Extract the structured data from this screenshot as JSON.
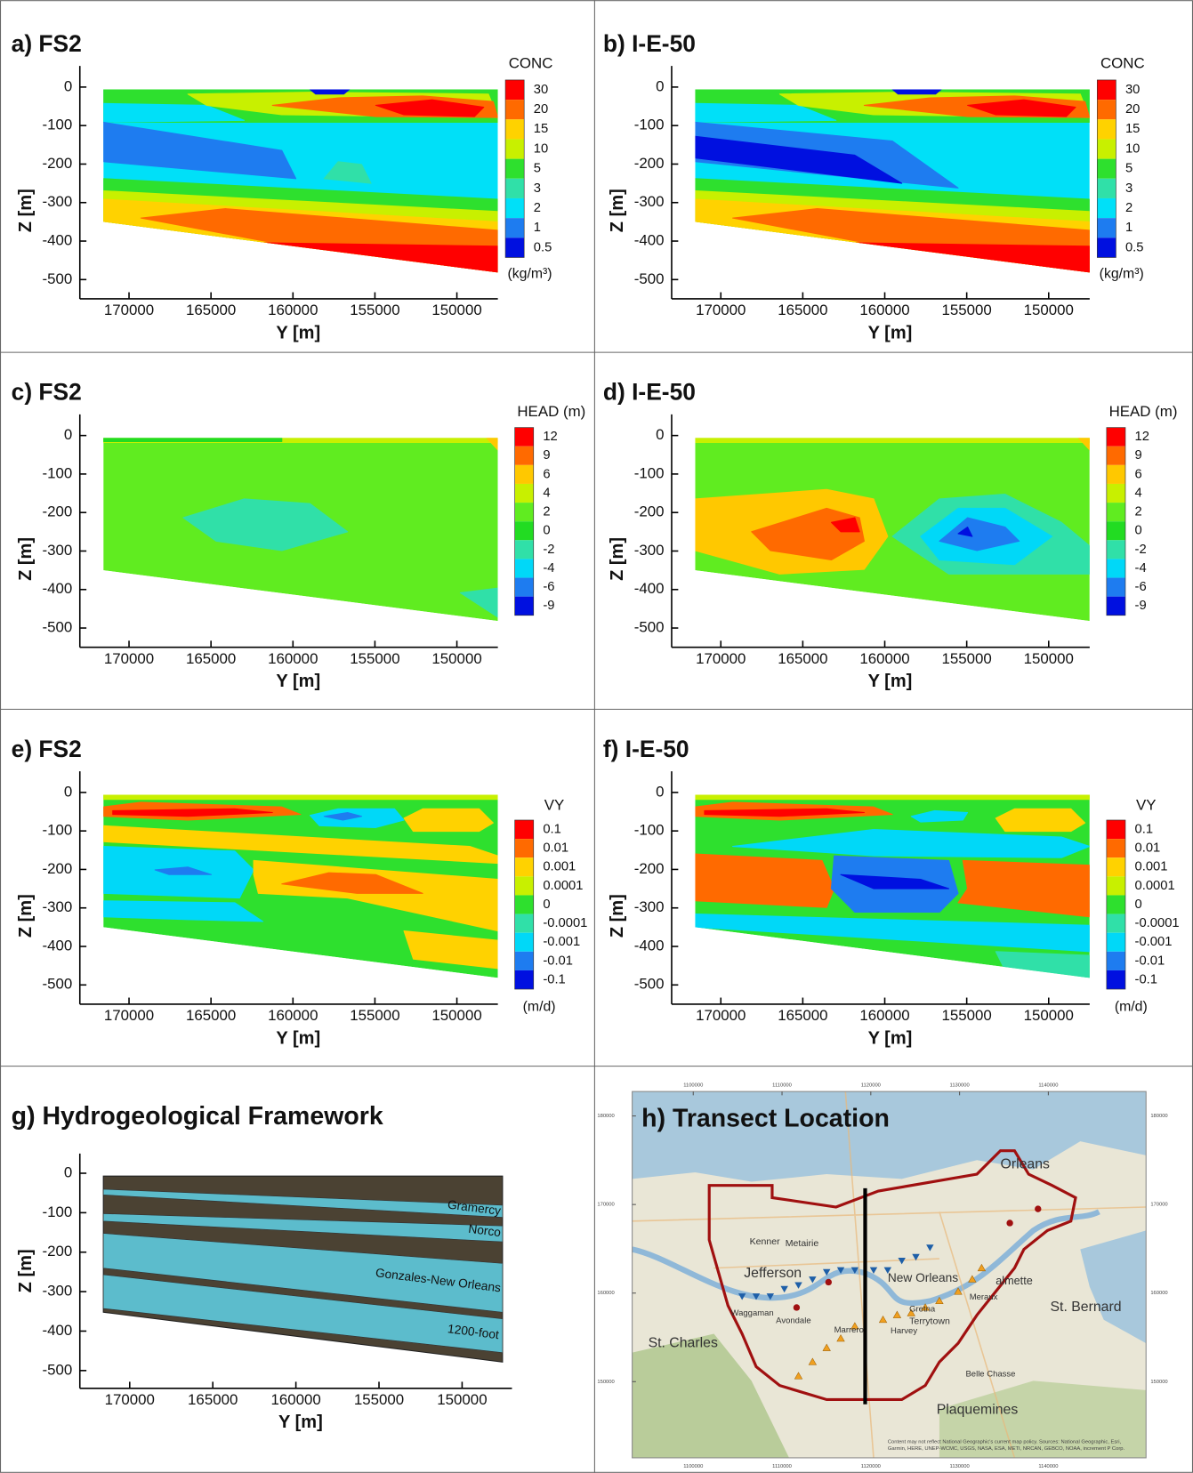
{
  "chart_data": [
    {
      "type": "contour",
      "title": "a) FS2",
      "xlabel": "Y [m]",
      "ylabel": "Z [m]",
      "xlim": [
        173000,
        147500
      ],
      "xticks": [
        170000,
        165000,
        160000,
        155000,
        150000
      ],
      "ylim": [
        -550,
        55
      ],
      "yticks": [
        0,
        -100,
        -200,
        -300,
        -400,
        -500
      ],
      "colorbar": {
        "title": "CONC",
        "levels": [
          30,
          20,
          15,
          10,
          5,
          3,
          2,
          1,
          0.5
        ],
        "unit": "(kg/m³)",
        "colors": [
          "#ff0000",
          "#ff6a00",
          "#ffd200",
          "#c8f000",
          "#2ee02e",
          "#30e0a8",
          "#00e0f8",
          "#1e7cf0",
          "#0010e0"
        ]
      }
    },
    {
      "type": "contour",
      "title": "b) I-E-50",
      "xlabel": "Y [m]",
      "ylabel": "Z [m]",
      "xlim": [
        173000,
        147500
      ],
      "xticks": [
        170000,
        165000,
        160000,
        155000,
        150000
      ],
      "ylim": [
        -550,
        55
      ],
      "yticks": [
        0,
        -100,
        -200,
        -300,
        -400,
        -500
      ],
      "colorbar": {
        "title": "CONC",
        "levels": [
          30,
          20,
          15,
          10,
          5,
          3,
          2,
          1,
          0.5
        ],
        "unit": "(kg/m³)",
        "colors": [
          "#ff0000",
          "#ff6a00",
          "#ffd200",
          "#c8f000",
          "#2ee02e",
          "#30e0a8",
          "#00e0f8",
          "#1e7cf0",
          "#0010e0"
        ]
      }
    },
    {
      "type": "contour",
      "title": "c) FS2",
      "xlabel": "Y [m]",
      "ylabel": "Z [m]",
      "xlim": [
        173000,
        147500
      ],
      "xticks": [
        170000,
        165000,
        160000,
        155000,
        150000
      ],
      "ylim": [
        -550,
        55
      ],
      "yticks": [
        0,
        -100,
        -200,
        -300,
        -400,
        -500
      ],
      "colorbar": {
        "title": "HEAD (m)",
        "levels": [
          12,
          9,
          6,
          4,
          2,
          0,
          -2,
          -4,
          -6,
          -9
        ],
        "colors": [
          "#ff0000",
          "#ff6a00",
          "#ffc800",
          "#c8f000",
          "#60ec20",
          "#22dc22",
          "#30e0a8",
          "#00d8f8",
          "#1e7cf0",
          "#0010e0"
        ]
      }
    },
    {
      "type": "contour",
      "title": "d) I-E-50",
      "xlabel": "Y [m]",
      "ylabel": "Z [m]",
      "xlim": [
        173000,
        147500
      ],
      "xticks": [
        170000,
        165000,
        160000,
        155000,
        150000
      ],
      "ylim": [
        -550,
        55
      ],
      "yticks": [
        0,
        -100,
        -200,
        -300,
        -400,
        -500
      ],
      "colorbar": {
        "title": "HEAD (m)",
        "levels": [
          12,
          9,
          6,
          4,
          2,
          0,
          -2,
          -4,
          -6,
          -9
        ],
        "colors": [
          "#ff0000",
          "#ff6a00",
          "#ffc800",
          "#c8f000",
          "#60ec20",
          "#22dc22",
          "#30e0a8",
          "#00d8f8",
          "#1e7cf0",
          "#0010e0"
        ]
      }
    },
    {
      "type": "contour",
      "title": "e) FS2",
      "xlabel": "Y [m]",
      "ylabel": "Z [m]",
      "xlim": [
        173000,
        147500
      ],
      "xticks": [
        170000,
        165000,
        160000,
        155000,
        150000
      ],
      "ylim": [
        -550,
        55
      ],
      "yticks": [
        0,
        -100,
        -200,
        -300,
        -400,
        -500
      ],
      "colorbar": {
        "title": "VY",
        "levels": [
          0.1,
          0.01,
          0.001,
          0.0001,
          0,
          -0.0001,
          -0.001,
          -0.01,
          -0.1
        ],
        "unit": "(m/d)",
        "colors": [
          "#ff0000",
          "#ff6a00",
          "#ffd200",
          "#c8f000",
          "#2ee02e",
          "#30e0a8",
          "#00d8f8",
          "#1e7cf0",
          "#0010e0"
        ]
      }
    },
    {
      "type": "contour",
      "title": "f) I-E-50",
      "xlabel": "Y [m]",
      "ylabel": "Z [m]",
      "xlim": [
        173000,
        147500
      ],
      "xticks": [
        170000,
        165000,
        160000,
        155000,
        150000
      ],
      "ylim": [
        -550,
        55
      ],
      "yticks": [
        0,
        -100,
        -200,
        -300,
        -400,
        -500
      ],
      "colorbar": {
        "title": "VY",
        "levels": [
          0.1,
          0.01,
          0.001,
          0.0001,
          0,
          -0.0001,
          -0.001,
          -0.01,
          -0.1
        ],
        "unit": "(m/d)",
        "colors": [
          "#ff0000",
          "#ff6a00",
          "#ffd200",
          "#c8f000",
          "#2ee02e",
          "#30e0a8",
          "#00d8f8",
          "#1e7cf0",
          "#0010e0"
        ]
      }
    },
    {
      "type": "layers",
      "title": "g) Hydrogeological Framework",
      "xlabel": "Y [m]",
      "ylabel": "Z [m]",
      "xlim": [
        173000,
        147000
      ],
      "xticks": [
        170000,
        165000,
        160000,
        155000,
        150000
      ],
      "ylim": [
        -545,
        50
      ],
      "yticks": [
        0,
        -100,
        -200,
        -300,
        -400,
        -500
      ],
      "layers": [
        "Gramercy",
        "Norco",
        "Gonzales-New Orleans",
        "1200-foot"
      ],
      "layer_color": "#5cbccc",
      "confining_color": "#4b4233"
    }
  ],
  "map": {
    "title": "h) Transect Location",
    "xticks": [
      1100000,
      1110000,
      1120000,
      1130000,
      1140000
    ],
    "yticks": [
      180000,
      170000,
      160000,
      150000
    ],
    "places": [
      "Orleans",
      "Kenner",
      "Metairie",
      "Jefferson",
      "New Orleans",
      "almette",
      "St. Bernard",
      "St. Charles",
      "Waggaman",
      "Avondale",
      "Marrero",
      "Harvey",
      "Gretna",
      "Terrytown",
      "Meraux",
      "Belle Chasse",
      "Plaquemines"
    ],
    "attribution": [
      "Content may not reflect National Geographic's current map policy. Sources: National Geographic, Esri,",
      "Garmin, HERE, UNEP-WCMC, USGS, NASA, ESA, METI, NRCAN, GEBCO, NOAA, increment P Corp."
    ]
  }
}
